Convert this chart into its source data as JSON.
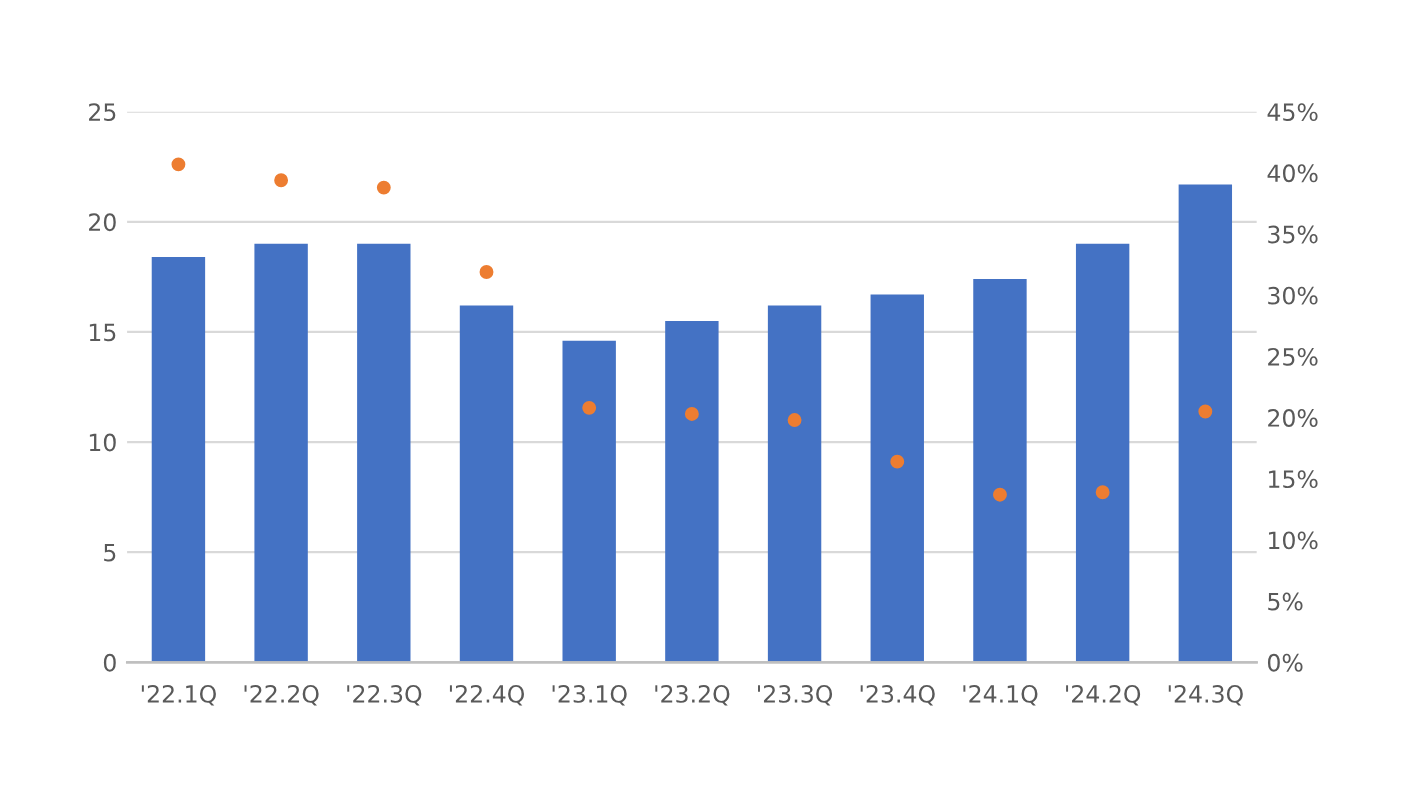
{
  "chart_data": {
    "type": "bar",
    "categories": [
      "'22.1Q",
      "'22.2Q",
      "'22.3Q",
      "'22.4Q",
      "'23.1Q",
      "'23.2Q",
      "'23.3Q",
      "'23.4Q",
      "'24.1Q",
      "'24.2Q",
      "'24.3Q"
    ],
    "series": [
      {
        "color": "#4472c4",
        "values": [
          18.4,
          19.0,
          19.0,
          16.2,
          14.6,
          15.5,
          16.2,
          16.7,
          17.4,
          19.0,
          21.7
        ]
      },
      {
        "type": "scatter",
        "axis": "y2",
        "color": "#ed7d31",
        "marker": "circle",
        "values": [
          40.7,
          39.4,
          38.8,
          31.9,
          20.8,
          20.3,
          19.8,
          16.4,
          13.7,
          13.9,
          20.5
        ]
      }
    ],
    "ylim": [
      0,
      25
    ],
    "yticks": [
      0,
      5,
      10,
      15,
      20,
      25
    ],
    "y2lim": [
      0,
      45
    ],
    "y2ticks": [
      {
        "value": 0,
        "label": "0%"
      },
      {
        "value": 5,
        "label": "5%"
      },
      {
        "value": 10,
        "label": "10%"
      },
      {
        "value": 15,
        "label": "15%"
      },
      {
        "value": 20,
        "label": "20%"
      },
      {
        "value": 25,
        "label": "25%"
      },
      {
        "value": 30,
        "label": "30%"
      },
      {
        "value": 35,
        "label": "35%"
      },
      {
        "value": 40,
        "label": "40%"
      },
      {
        "value": 45,
        "label": "45%"
      }
    ],
    "grid": "y"
  }
}
